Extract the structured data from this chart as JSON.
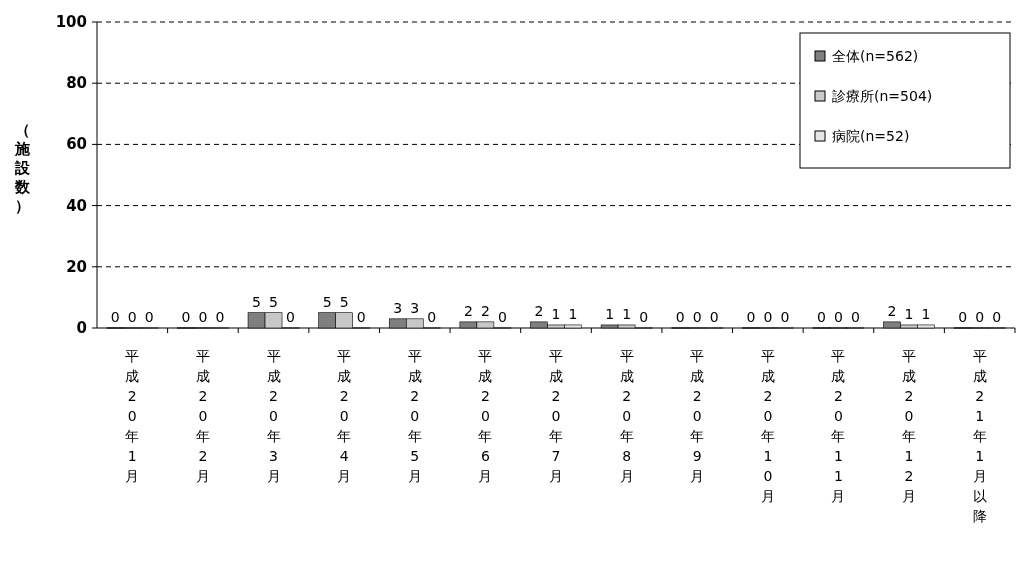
{
  "chart_data": {
    "type": "bar",
    "ylabel": "（施設数）",
    "categories": [
      "平成20年1月",
      "平成20年2月",
      "平成20年3月",
      "平成20年4月",
      "平成20年5月",
      "平成20年6月",
      "平成20年7月",
      "平成20年8月",
      "平成20年9月",
      "平成20年10月",
      "平成20年11月",
      "平成20年12月",
      "平成21年1月以降"
    ],
    "series": [
      {
        "name": "全体(n=562)",
        "color": "#7f7f7f",
        "values": [
          0,
          0,
          5,
          5,
          3,
          2,
          2,
          1,
          0,
          0,
          0,
          2,
          0
        ]
      },
      {
        "name": "診療所(n=504)",
        "color": "#c8c8c8",
        "values": [
          0,
          0,
          5,
          5,
          3,
          2,
          1,
          1,
          0,
          0,
          0,
          1,
          0
        ]
      },
      {
        "name": "病院(n=52)",
        "color": "#e6e6e6",
        "values": [
          0,
          0,
          0,
          0,
          0,
          0,
          1,
          0,
          0,
          0,
          0,
          1,
          0
        ]
      }
    ],
    "ylim": [
      0,
      100
    ],
    "yticks": [
      0,
      20,
      40,
      60,
      80,
      100
    ],
    "grid": "y",
    "legend": "top right",
    "data_labels": true
  }
}
